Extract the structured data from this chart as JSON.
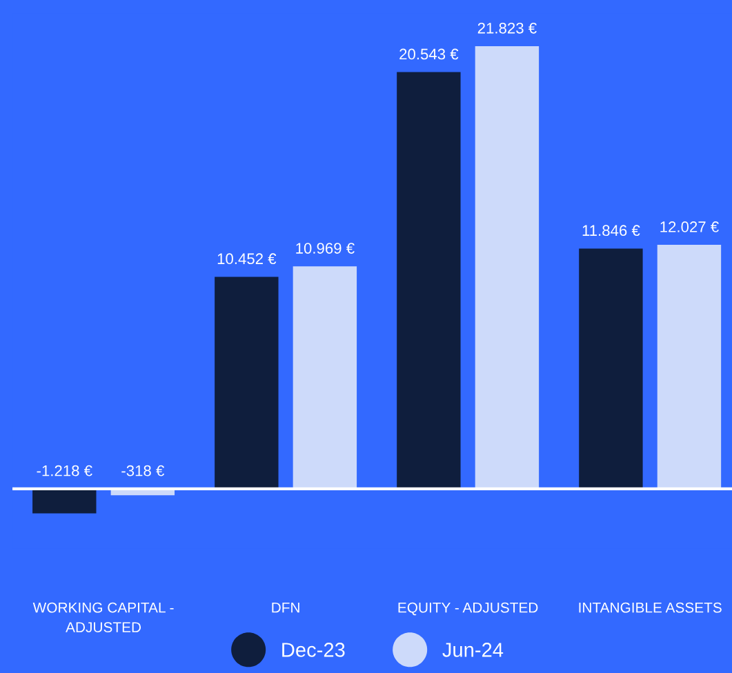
{
  "chart_data": {
    "type": "bar",
    "categories": [
      "WORKING CAPITAL - ADJUSTED",
      "DFN",
      "EQUITY - ADJUSTED",
      "INTANGIBLE ASSETS"
    ],
    "series": [
      {
        "name": "Dec-23",
        "color": "#0f1e3d",
        "values": [
          -1218,
          10452,
          20543,
          11846
        ],
        "value_labels": [
          "-1.218 €",
          "10.452 €",
          "20.543 €",
          "11.846 €"
        ]
      },
      {
        "name": "Jun-24",
        "color": "#cddafa",
        "values": [
          -318,
          10969,
          21823,
          12027
        ],
        "value_labels": [
          "-318 €",
          "10.969 €",
          "21.823 €",
          "12.027 €"
        ]
      }
    ],
    "legend": "bottom",
    "grid": false,
    "tick_labels": "x"
  }
}
